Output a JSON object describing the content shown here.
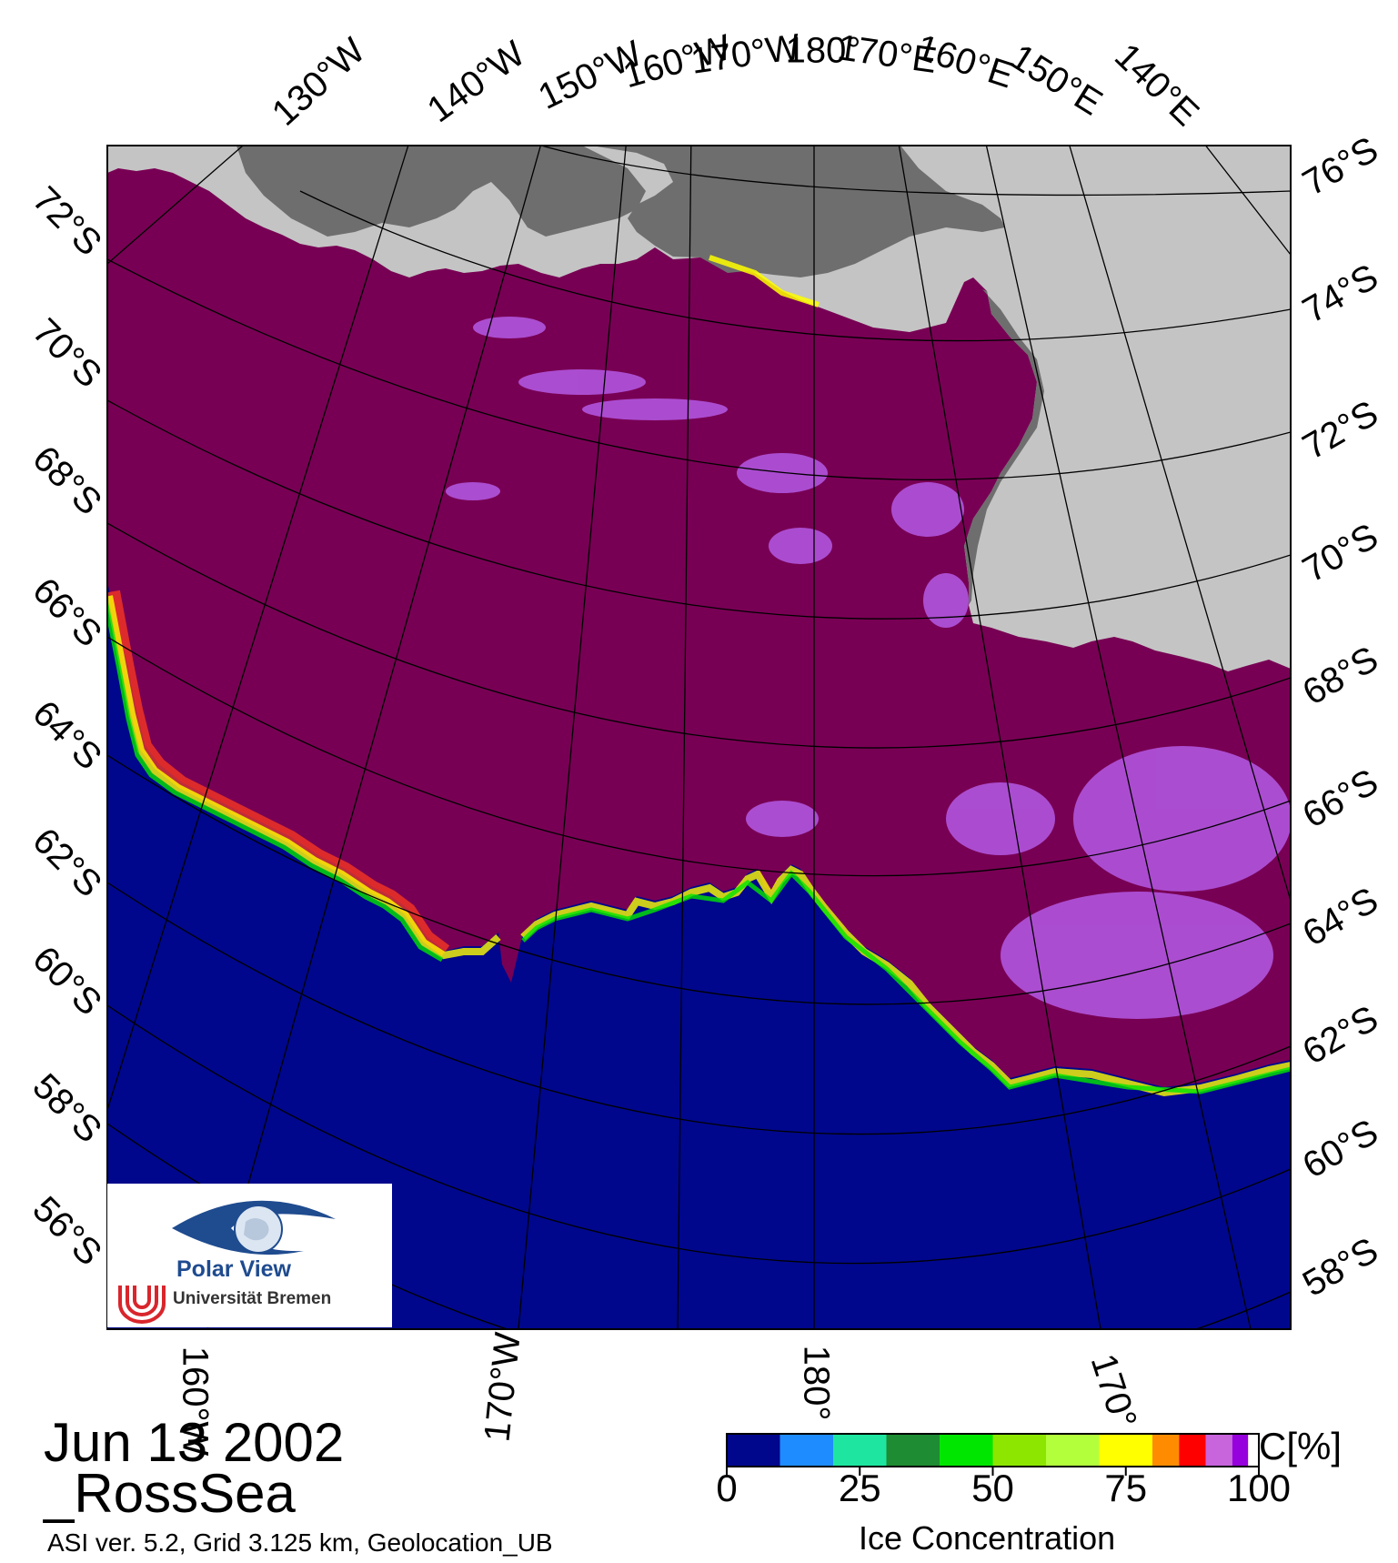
{
  "map": {
    "date": "Jun 13 2002",
    "region": "_RossSea",
    "footer": "ASI ver. 5.2,  Grid 3.125 km, Geolocation_UB",
    "top_lon_labels": [
      "130°W",
      "140°W",
      "150°W",
      "160°W",
      "170°W",
      "180°",
      "170°E",
      "160°E",
      "150°E",
      "140°E"
    ],
    "left_lat_labels": [
      "72°S",
      "70°S",
      "68°S",
      "66°S",
      "64°S",
      "62°S",
      "60°S",
      "58°S",
      "56°S"
    ],
    "right_lat_labels": [
      "76°S",
      "74°S",
      "72°S",
      "70°S",
      "68°S",
      "66°S",
      "64°S",
      "62°S",
      "60°S",
      "58°S"
    ],
    "bottom_lon_labels": [
      "160°W",
      "170°W",
      "180°",
      "170°"
    ],
    "colors": {
      "ocean": "#00078c",
      "high_ice": "#780054",
      "land": "#c4c4c4",
      "ice_shelf": "#6e6e6e"
    }
  },
  "logo": {
    "title": "Polar View",
    "institution": "Universität Bremen",
    "icons": [
      "eye-globe-icon",
      "university-bremen-logo-icon"
    ]
  },
  "colorbar": {
    "title": "Ice Concentration",
    "unit": "C[%]",
    "ticks": [
      "0",
      "25",
      "50",
      "75",
      "100"
    ],
    "tick_values": [
      0,
      25,
      50,
      75,
      100
    ],
    "range": [
      0,
      100
    ],
    "colors": [
      "#00078c",
      "#00078c",
      "#1e8cff",
      "#1ee6a0",
      "#1e8c32",
      "#00e600",
      "#8ce600",
      "#b4ff3c",
      "#ffff00",
      "#ff8c00",
      "#ff0000",
      "#c864dc",
      "#9600dc",
      "#ffffff"
    ],
    "boundaries": [
      0,
      10,
      20,
      30,
      40,
      50,
      60,
      70,
      80,
      85,
      90,
      95,
      98,
      99,
      100
    ]
  }
}
